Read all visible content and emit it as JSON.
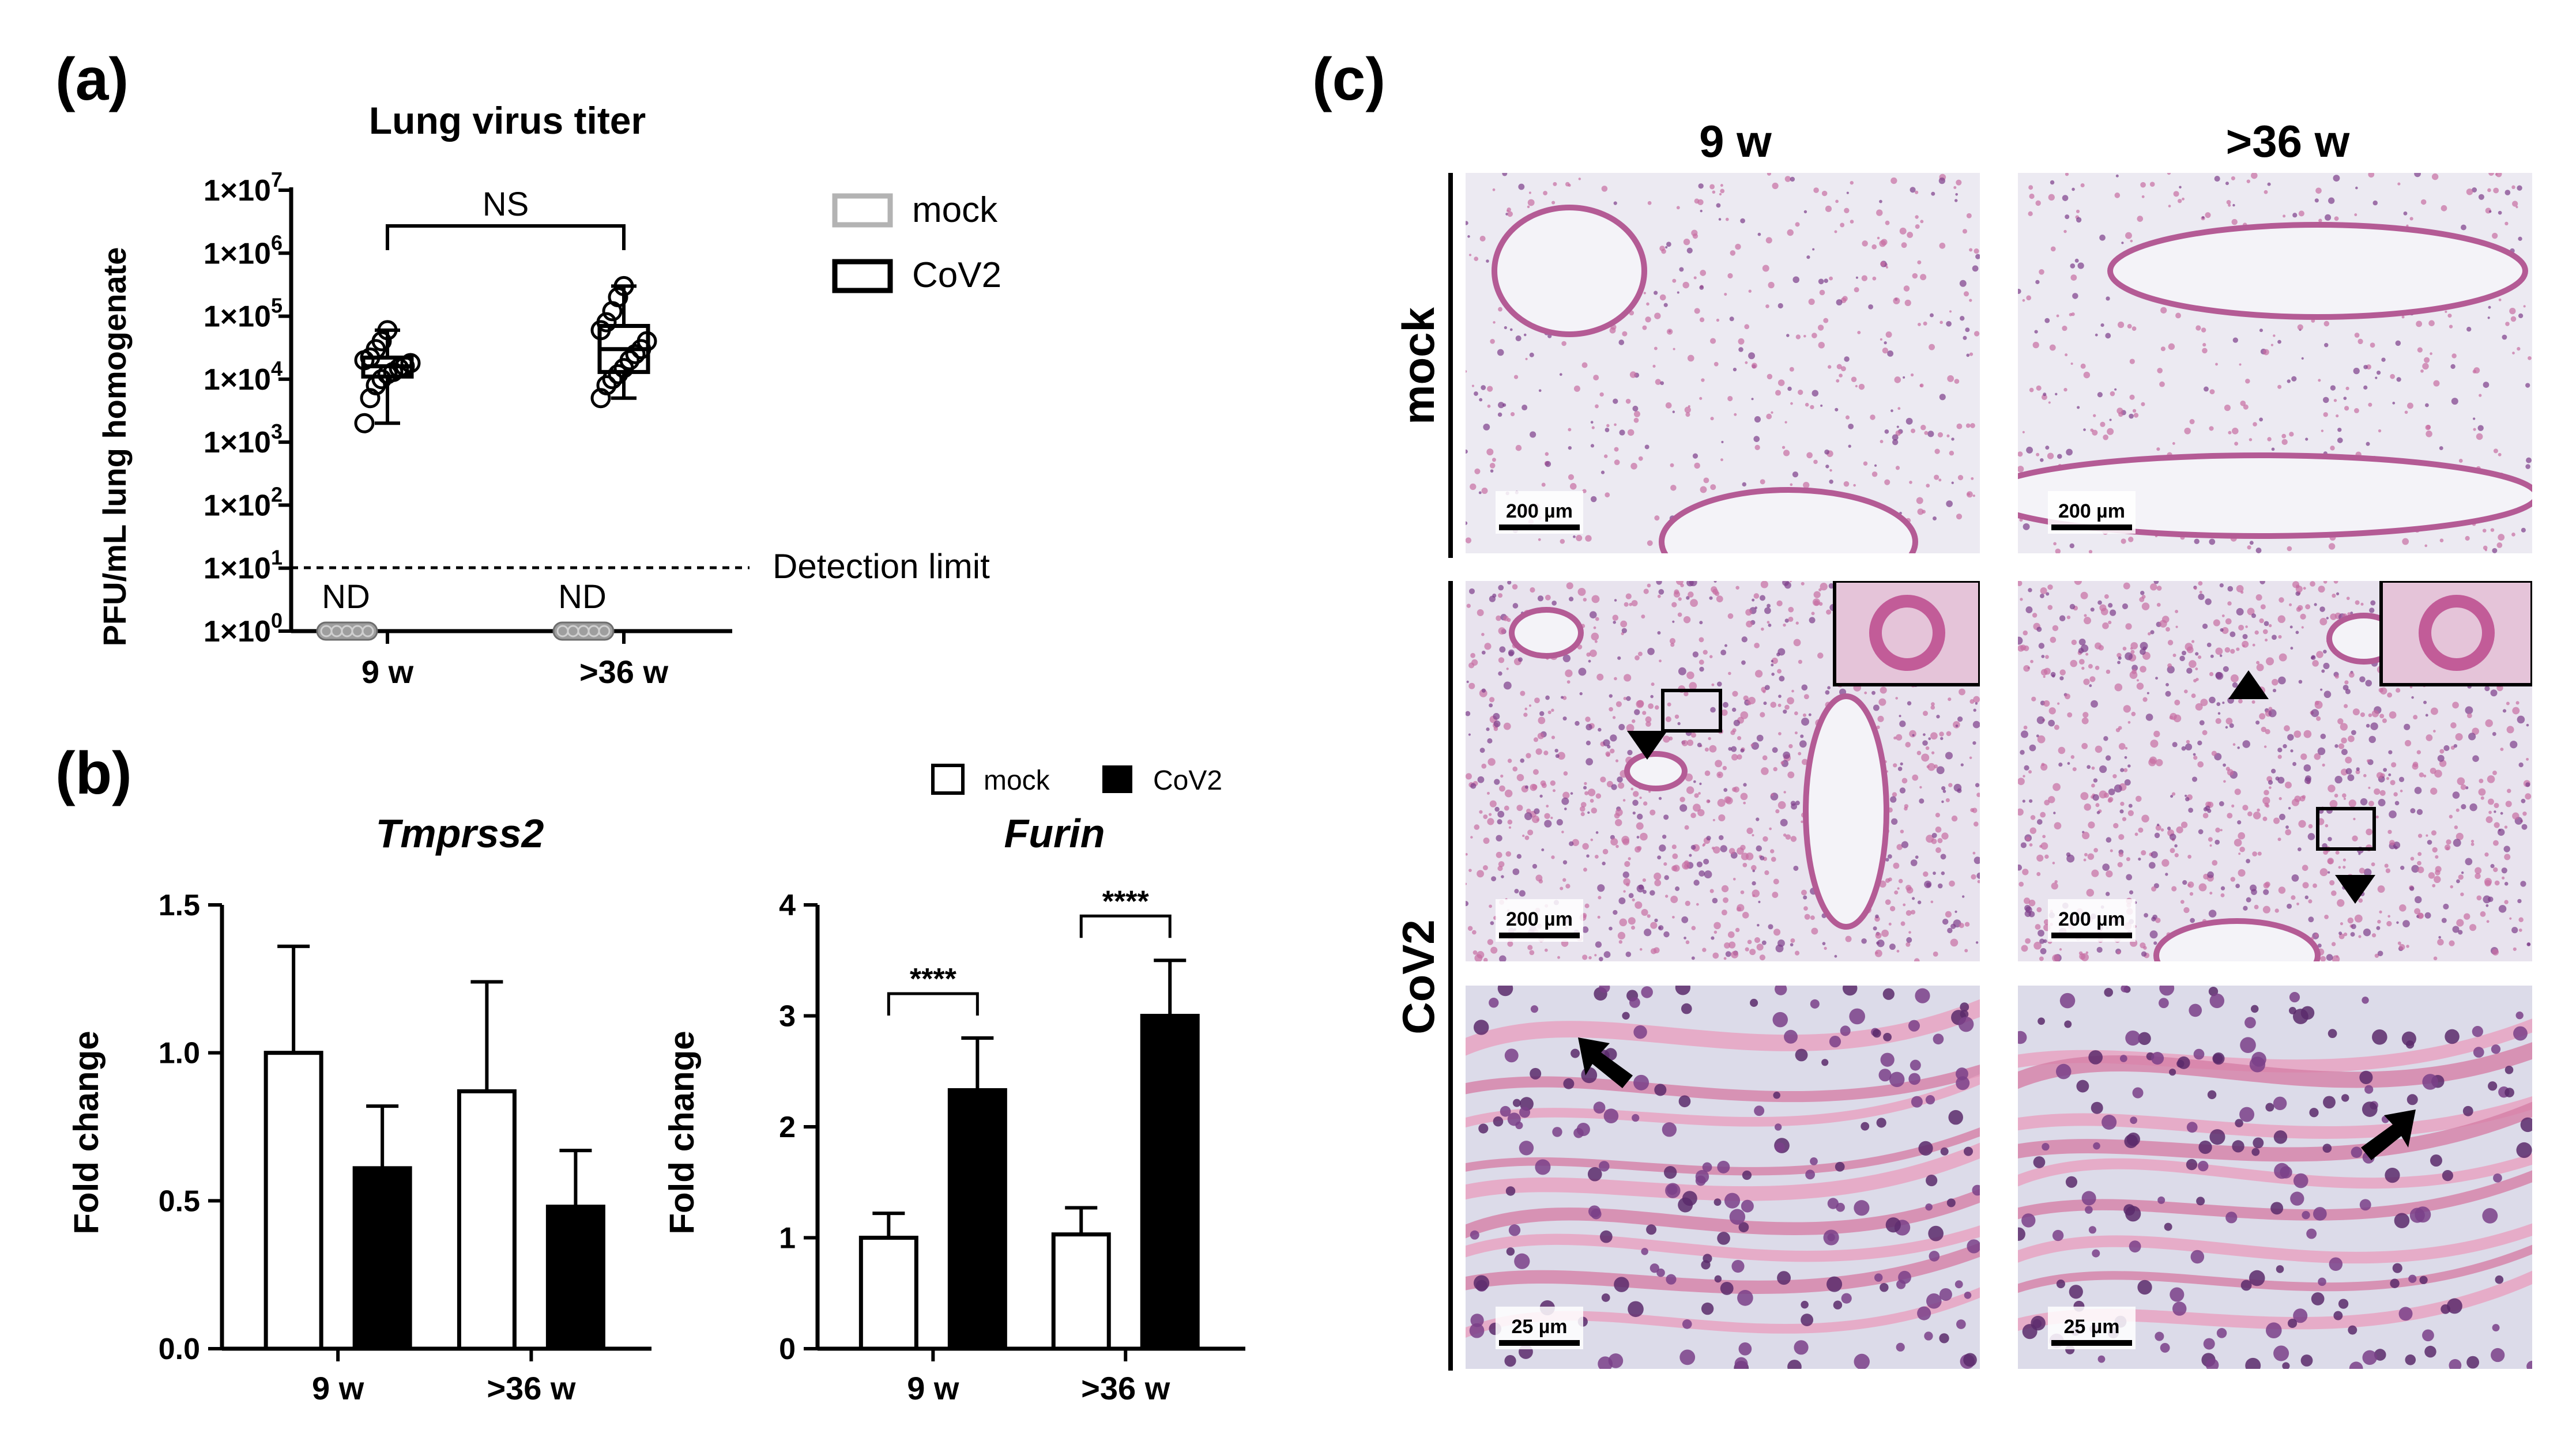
{
  "panels": {
    "a": {
      "letter": "(a)",
      "title": "Lung virus titer",
      "ylabel": "PFU/mL lung homogenate",
      "yticks": [
        "1×10",
        "1×10",
        "1×10",
        "1×10",
        "1×10",
        "1×10",
        "1×10",
        "1×10"
      ],
      "ytick_exps": [
        "0",
        "1",
        "2",
        "3",
        "4",
        "5",
        "6",
        "7"
      ],
      "xticks": [
        "9 w",
        ">36 w"
      ],
      "significance": "NS",
      "nd_label": "ND",
      "detection_limit_label": "Detection limit",
      "legend": [
        "mock",
        "CoV2"
      ]
    },
    "b": {
      "letter": "(b)",
      "legend": [
        "mock",
        "CoV2"
      ],
      "charts": [
        {
          "title": "Tmprss2",
          "ylabel": "Fold change",
          "yticks": [
            "0.0",
            "0.5",
            "1.0",
            "1.5"
          ],
          "xticks": [
            "9 w",
            ">36 w"
          ],
          "sig": ""
        },
        {
          "title": "Furin",
          "ylabel": "Fold change",
          "yticks": [
            "0",
            "1",
            "2",
            "3",
            "4"
          ],
          "xticks": [
            "9 w",
            ">36 w"
          ],
          "sig": "****"
        }
      ]
    },
    "c": {
      "letter": "(c)",
      "columns": [
        "9 w",
        ">36 w"
      ],
      "rows": [
        "mock",
        "CoV2"
      ],
      "scalebars": [
        "200 µm",
        "200 µm",
        "200 µm",
        "200 µm",
        "25 µm",
        "25 µm"
      ]
    }
  },
  "chart_data": [
    {
      "type": "scatter",
      "title": "Lung virus titer",
      "ylabel": "PFU/mL lung homogenate",
      "yscale": "log",
      "ylim": [
        1,
        10000000
      ],
      "categories": [
        "9 w",
        ">36 w"
      ],
      "detection_limit": 10,
      "series": [
        {
          "name": "mock",
          "values": [
            "ND",
            "ND"
          ]
        },
        {
          "name": "CoV2",
          "category": "9 w",
          "min": 2000,
          "q1": 11000,
          "median": 16000,
          "q3": 22000,
          "max": 60000,
          "points": [
            2000,
            5000,
            8000,
            10000,
            12000,
            13000,
            15000,
            16000,
            18000,
            20000,
            22000,
            30000,
            40000,
            60000
          ]
        },
        {
          "name": "CoV2",
          "category": ">36 w",
          "min": 5000,
          "q1": 13000,
          "median": 30000,
          "q3": 70000,
          "max": 300000,
          "points": [
            5000,
            8000,
            10000,
            12000,
            15000,
            20000,
            25000,
            30000,
            40000,
            60000,
            80000,
            120000,
            200000,
            300000
          ]
        }
      ],
      "annotations": [
        "NS"
      ]
    },
    {
      "type": "bar",
      "title": "Tmprss2",
      "ylabel": "Fold change",
      "ylim": [
        0,
        1.5
      ],
      "categories": [
        "9 w",
        ">36 w"
      ],
      "series": [
        {
          "name": "mock",
          "values": [
            1.0,
            0.87
          ],
          "errors": [
            0.36,
            0.37
          ]
        },
        {
          "name": "CoV2",
          "values": [
            0.61,
            0.48
          ],
          "errors": [
            0.21,
            0.19
          ]
        }
      ]
    },
    {
      "type": "bar",
      "title": "Furin",
      "ylabel": "Fold change",
      "ylim": [
        0,
        4
      ],
      "categories": [
        "9 w",
        ">36 w"
      ],
      "series": [
        {
          "name": "mock",
          "values": [
            1.0,
            1.03
          ],
          "errors": [
            0.22,
            0.24
          ]
        },
        {
          "name": "CoV2",
          "values": [
            2.33,
            3.0
          ],
          "errors": [
            0.47,
            0.5
          ]
        }
      ],
      "annotations": [
        "****",
        "****"
      ]
    }
  ]
}
